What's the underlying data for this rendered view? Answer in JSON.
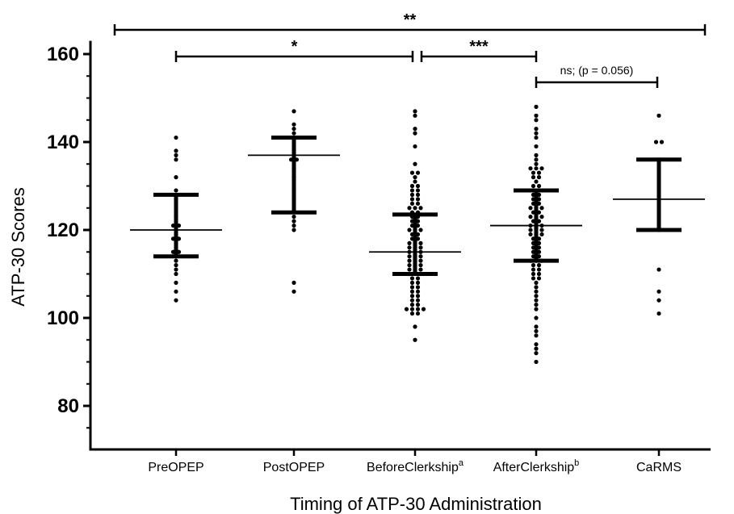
{
  "chart_data": {
    "type": "scatter",
    "subtype": "dot-plot with median and interquartile range",
    "xlabel": "Timing of ATP-30 Administration",
    "ylabel": "ATP-30 Scores",
    "ylim": [
      70,
      163
    ],
    "yticks": [
      "80",
      "100",
      "120",
      "140",
      "160"
    ],
    "categories": [
      {
        "name": "PreOPEP",
        "sup": ""
      },
      {
        "name": "PostOPEP",
        "sup": ""
      },
      {
        "name": "BeforeClerkship",
        "sup": "a"
      },
      {
        "name": "AfterClerkship",
        "sup": "b"
      },
      {
        "name": "CaRMS",
        "sup": ""
      }
    ],
    "groups": [
      {
        "median": 120,
        "q1": 114,
        "q3": 128,
        "values": [
          141,
          138,
          137,
          136,
          132,
          129,
          127,
          123,
          121,
          121,
          120,
          119,
          118,
          118,
          117,
          116,
          115,
          115,
          114,
          113,
          112,
          111,
          110,
          108,
          106,
          104
        ]
      },
      {
        "median": 137,
        "q1": 124,
        "q3": 141,
        "values": [
          147,
          144,
          143,
          142,
          141,
          139,
          137,
          136,
          136,
          134,
          132,
          129,
          127,
          123,
          122,
          121,
          120,
          108,
          106
        ]
      },
      {
        "median": 115,
        "q1": 110,
        "q3": 123.5,
        "values": [
          147,
          146,
          143,
          142,
          139,
          135,
          133,
          133,
          132,
          131,
          130,
          130,
          129,
          129,
          128,
          128,
          127,
          127,
          126,
          126,
          125,
          125,
          125,
          124,
          124,
          123,
          123,
          122,
          122,
          121,
          121,
          120,
          120,
          120,
          119,
          119,
          118,
          118,
          117,
          117,
          117,
          116,
          116,
          116,
          115,
          115,
          115,
          114,
          114,
          114,
          113,
          113,
          113,
          112,
          112,
          112,
          111,
          111,
          111,
          110,
          110,
          110,
          109,
          109,
          108,
          108,
          107,
          107,
          106,
          106,
          105,
          105,
          104,
          104,
          103,
          103,
          102,
          102,
          102,
          102,
          101,
          101,
          98,
          95
        ]
      },
      {
        "median": 121,
        "q1": 113,
        "q3": 129,
        "values": [
          148,
          146,
          145,
          143,
          142,
          141,
          139,
          137,
          136,
          135,
          134,
          134,
          134,
          133,
          133,
          132,
          132,
          131,
          130,
          130,
          129,
          129,
          128,
          128,
          127,
          127,
          126,
          126,
          125,
          125,
          125,
          124,
          124,
          123,
          123,
          123,
          122,
          122,
          121,
          121,
          121,
          120,
          120,
          120,
          119,
          119,
          119,
          118,
          118,
          117,
          117,
          116,
          116,
          115,
          115,
          114,
          114,
          113,
          113,
          113,
          112,
          112,
          111,
          111,
          110,
          110,
          109,
          109,
          108,
          107,
          106,
          105,
          104,
          103,
          102,
          100,
          98,
          97,
          96,
          94,
          93,
          92,
          90
        ]
      },
      {
        "median": 127,
        "q1": 120,
        "q3": 136,
        "values": [
          146,
          140,
          140,
          136,
          127,
          120,
          111,
          106,
          104,
          101
        ]
      }
    ],
    "comparisons": [
      {
        "from": 0,
        "to": 4,
        "label": "**"
      },
      {
        "from": 0,
        "to": 2,
        "label": "*"
      },
      {
        "from": 2,
        "to": 3,
        "label": "***"
      },
      {
        "from": 3,
        "to": 4,
        "label": "ns; (p = 0.056)"
      }
    ]
  }
}
